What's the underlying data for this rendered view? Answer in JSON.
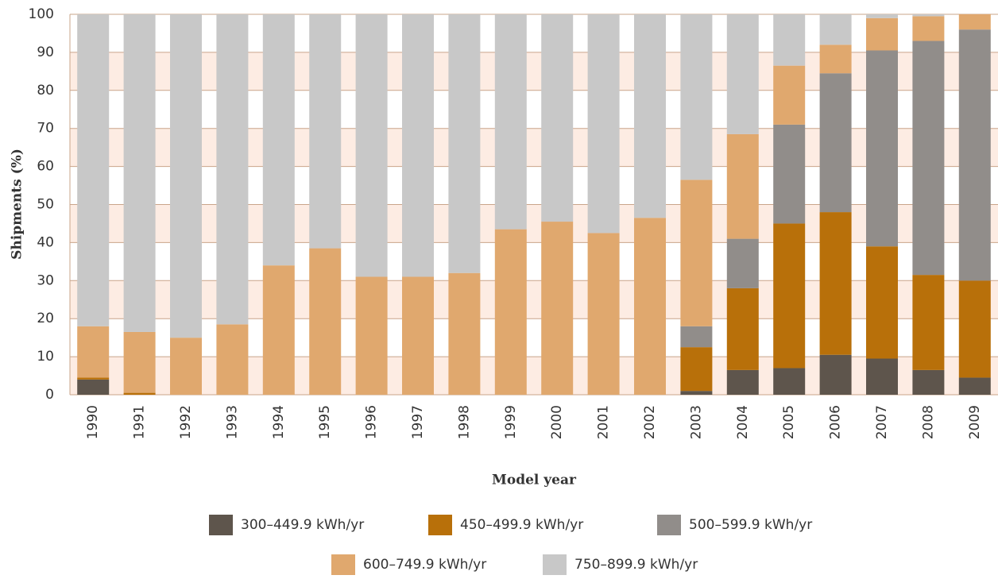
{
  "chart_data": {
    "type": "stacked_bar",
    "xlabel": "Model year",
    "ylabel": "Shipments (%)",
    "categories": [
      "1990",
      "1991",
      "1992",
      "1993",
      "1994",
      "1995",
      "1996",
      "1997",
      "1998",
      "1999",
      "2000",
      "2001",
      "2002",
      "2003",
      "2004",
      "2005",
      "2006",
      "2007",
      "2008",
      "2009"
    ],
    "series": [
      {
        "name": "300–449.9 kWh/yr",
        "color": "#5e554c",
        "values": [
          4,
          0,
          0,
          0,
          0,
          0,
          0,
          0,
          0,
          0,
          0,
          0,
          0,
          1,
          6.5,
          7,
          10.5,
          9.5,
          6.5,
          4.5
        ]
      },
      {
        "name": "450–499.9 kWh/yr",
        "color": "#b8700a",
        "values": [
          0.5,
          0.5,
          0,
          0,
          0,
          0,
          0,
          0,
          0,
          0,
          0,
          0,
          0,
          11.5,
          21.5,
          38,
          37.5,
          29.5,
          25,
          25.5
        ]
      },
      {
        "name": "500–599.9 kWh/yr",
        "color": "#918d8a",
        "values": [
          0,
          0,
          0,
          0,
          0,
          0,
          0,
          0,
          0,
          0,
          0,
          0,
          0,
          5.5,
          13,
          26,
          36.5,
          51.5,
          61.5,
          66
        ]
      },
      {
        "name": "600–749.9 kWh/yr",
        "color": "#e0a86e",
        "values": [
          13.5,
          16,
          15,
          18.5,
          34,
          38.5,
          31,
          31,
          32,
          43.5,
          45.5,
          42.5,
          46.5,
          38.5,
          27.5,
          15.5,
          7.5,
          8.5,
          6.5,
          4
        ]
      },
      {
        "name": "750–899.9 kWh/yr",
        "color": "#c8c8c8",
        "values": [
          82,
          83.5,
          85,
          81.5,
          66,
          61.5,
          69,
          69,
          68,
          56.5,
          54.5,
          57.5,
          53.5,
          43.5,
          31.5,
          13.5,
          8,
          1,
          0.5,
          0
        ]
      }
    ],
    "ylim": [
      0,
      100
    ],
    "yticks": [
      0,
      10,
      20,
      30,
      40,
      50,
      60,
      70,
      80,
      90,
      100
    ],
    "grid": true
  }
}
